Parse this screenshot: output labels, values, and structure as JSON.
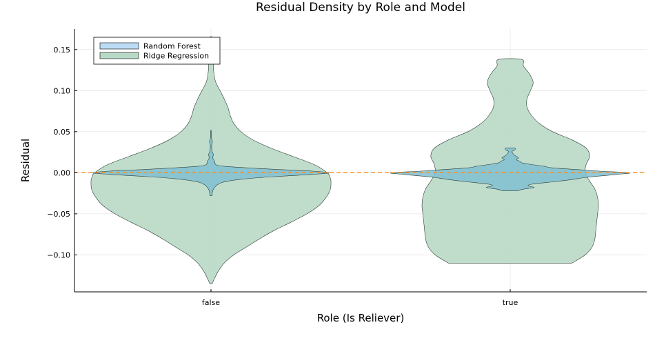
{
  "chart_data": {
    "type": "violin",
    "title": "Residual Density by Role and Model",
    "xlabel": "Role (Is Reliever)",
    "ylabel": "Residual",
    "categories": [
      "false",
      "true"
    ],
    "ylim": [
      -0.145,
      0.175
    ],
    "yticks": [
      -0.1,
      -0.05,
      0.0,
      0.05,
      0.1,
      0.15
    ],
    "ytick_labels": [
      "−0.10",
      "−0.05",
      "0.00",
      "0.05",
      "0.10",
      "0.15"
    ],
    "grid": true,
    "legend_position": "top-left",
    "reference_line": {
      "y": 0,
      "style": "dashed",
      "color": "#ff8c1a"
    },
    "series": [
      {
        "name": "Ridge Regression",
        "color": "#b9d9c7",
        "profiles": {
          "false": [
            [
              -0.135,
              0.01
            ],
            [
              -0.13,
              0.025
            ],
            [
              -0.12,
              0.06
            ],
            [
              -0.11,
              0.11
            ],
            [
              -0.1,
              0.19
            ],
            [
              -0.09,
              0.3
            ],
            [
              -0.08,
              0.41
            ],
            [
              -0.07,
              0.53
            ],
            [
              -0.06,
              0.67
            ],
            [
              -0.05,
              0.8
            ],
            [
              -0.04,
              0.9
            ],
            [
              -0.03,
              0.96
            ],
            [
              -0.02,
              0.995
            ],
            [
              -0.01,
              1.0
            ],
            [
              -0.005,
              0.99
            ],
            [
              0.0,
              0.97
            ],
            [
              0.01,
              0.86
            ],
            [
              0.02,
              0.68
            ],
            [
              0.03,
              0.5
            ],
            [
              0.04,
              0.35
            ],
            [
              0.05,
              0.25
            ],
            [
              0.06,
              0.19
            ],
            [
              0.07,
              0.16
            ],
            [
              0.08,
              0.14
            ],
            [
              0.09,
              0.11
            ],
            [
              0.1,
              0.075
            ],
            [
              0.11,
              0.04
            ],
            [
              0.12,
              0.025
            ],
            [
              0.13,
              0.02
            ],
            [
              0.14,
              0.02
            ],
            [
              0.15,
              0.02
            ],
            [
              0.16,
              0.015
            ],
            [
              0.165,
              0.012
            ]
          ],
          "true": [
            [
              -0.11,
              0.7
            ],
            [
              -0.1,
              0.85
            ],
            [
              -0.09,
              0.93
            ],
            [
              -0.08,
              0.96
            ],
            [
              -0.07,
              0.97
            ],
            [
              -0.06,
              0.98
            ],
            [
              -0.05,
              0.99
            ],
            [
              -0.04,
              1.0
            ],
            [
              -0.03,
              0.99
            ],
            [
              -0.02,
              0.96
            ],
            [
              -0.01,
              0.9
            ],
            [
              0.0,
              0.85
            ],
            [
              0.01,
              0.86
            ],
            [
              0.02,
              0.9
            ],
            [
              0.03,
              0.86
            ],
            [
              0.04,
              0.7
            ],
            [
              0.05,
              0.48
            ],
            [
              0.06,
              0.33
            ],
            [
              0.07,
              0.24
            ],
            [
              0.08,
              0.19
            ],
            [
              0.09,
              0.19
            ],
            [
              0.1,
              0.23
            ],
            [
              0.11,
              0.26
            ],
            [
              0.12,
              0.22
            ],
            [
              0.13,
              0.15
            ],
            [
              0.138,
              0.13
            ]
          ]
        }
      },
      {
        "name": "Random Forest",
        "color": "#80bfd1",
        "profiles": {
          "false": [
            [
              -0.028,
              0.008
            ],
            [
              -0.024,
              0.012
            ],
            [
              -0.02,
              0.02
            ],
            [
              -0.015,
              0.05
            ],
            [
              -0.012,
              0.09
            ],
            [
              -0.01,
              0.15
            ],
            [
              -0.008,
              0.25
            ],
            [
              -0.006,
              0.4
            ],
            [
              -0.004,
              0.62
            ],
            [
              -0.002,
              0.85
            ],
            [
              0.0,
              1.0
            ],
            [
              0.002,
              0.85
            ],
            [
              0.004,
              0.55
            ],
            [
              0.006,
              0.3
            ],
            [
              0.008,
              0.1
            ],
            [
              0.01,
              0.04
            ],
            [
              0.014,
              0.03
            ],
            [
              0.018,
              0.015
            ],
            [
              0.022,
              0.02
            ],
            [
              0.026,
              0.01
            ],
            [
              0.03,
              0.006
            ],
            [
              0.034,
              0.006
            ],
            [
              0.038,
              0.012
            ],
            [
              0.042,
              0.005
            ],
            [
              0.046,
              0.004
            ],
            [
              0.051,
              0.003
            ]
          ],
          "true": [
            [
              -0.022,
              0.06
            ],
            [
              -0.02,
              0.11
            ],
            [
              -0.018,
              0.2
            ],
            [
              -0.016,
              0.15
            ],
            [
              -0.014,
              0.18
            ],
            [
              -0.012,
              0.3
            ],
            [
              -0.01,
              0.42
            ],
            [
              -0.008,
              0.53
            ],
            [
              -0.006,
              0.62
            ],
            [
              -0.004,
              0.75
            ],
            [
              -0.002,
              0.9
            ],
            [
              0.0,
              1.0
            ],
            [
              0.002,
              0.75
            ],
            [
              0.004,
              0.55
            ],
            [
              0.006,
              0.35
            ],
            [
              0.008,
              0.28
            ],
            [
              0.01,
              0.18
            ],
            [
              0.012,
              0.1
            ],
            [
              0.014,
              0.08
            ],
            [
              0.016,
              0.05
            ],
            [
              0.018,
              0.07
            ],
            [
              0.02,
              0.05
            ],
            [
              0.022,
              0.03
            ],
            [
              0.024,
              0.02
            ],
            [
              0.026,
              0.015
            ],
            [
              0.028,
              0.04
            ],
            [
              0.03,
              0.035
            ]
          ]
        }
      }
    ]
  }
}
